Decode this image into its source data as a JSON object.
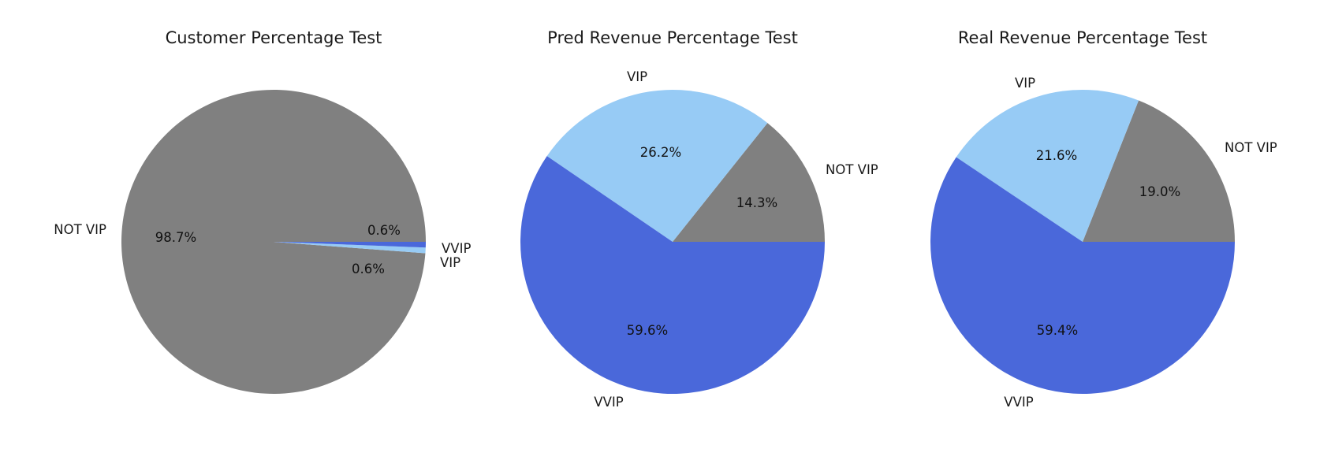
{
  "colors": {
    "NOT VIP": "#808080",
    "VIP": "#97cbf5",
    "VVIP": "#4a68da"
  },
  "chart_data": [
    {
      "type": "pie",
      "title": "Customer Percentage Test",
      "labels": [
        "NOT VIP",
        "VIP",
        "VVIP"
      ],
      "values": [
        98.7,
        0.6,
        0.6
      ],
      "value_labels": [
        "98.7%",
        "0.6%",
        "0.6%"
      ],
      "colors": [
        "#808080",
        "#97cbf5",
        "#4a68da"
      ],
      "start_angle": 0,
      "direction": "counterclockwise"
    },
    {
      "type": "pie",
      "title": "Pred Revenue Percentage Test",
      "labels": [
        "NOT VIP",
        "VIP",
        "VVIP"
      ],
      "values": [
        14.3,
        26.2,
        59.6
      ],
      "value_labels": [
        "14.3%",
        "26.2%",
        "59.6%"
      ],
      "colors": [
        "#808080",
        "#97cbf5",
        "#4a68da"
      ],
      "start_angle": 0,
      "direction": "counterclockwise"
    },
    {
      "type": "pie",
      "title": "Real Revenue Percentage Test",
      "labels": [
        "NOT VIP",
        "VIP",
        "VVIP"
      ],
      "values": [
        19.0,
        21.6,
        59.4
      ],
      "value_labels": [
        "19.0%",
        "21.6%",
        "59.4%"
      ],
      "colors": [
        "#808080",
        "#97cbf5",
        "#4a68da"
      ],
      "start_angle": 0,
      "direction": "counterclockwise"
    }
  ]
}
